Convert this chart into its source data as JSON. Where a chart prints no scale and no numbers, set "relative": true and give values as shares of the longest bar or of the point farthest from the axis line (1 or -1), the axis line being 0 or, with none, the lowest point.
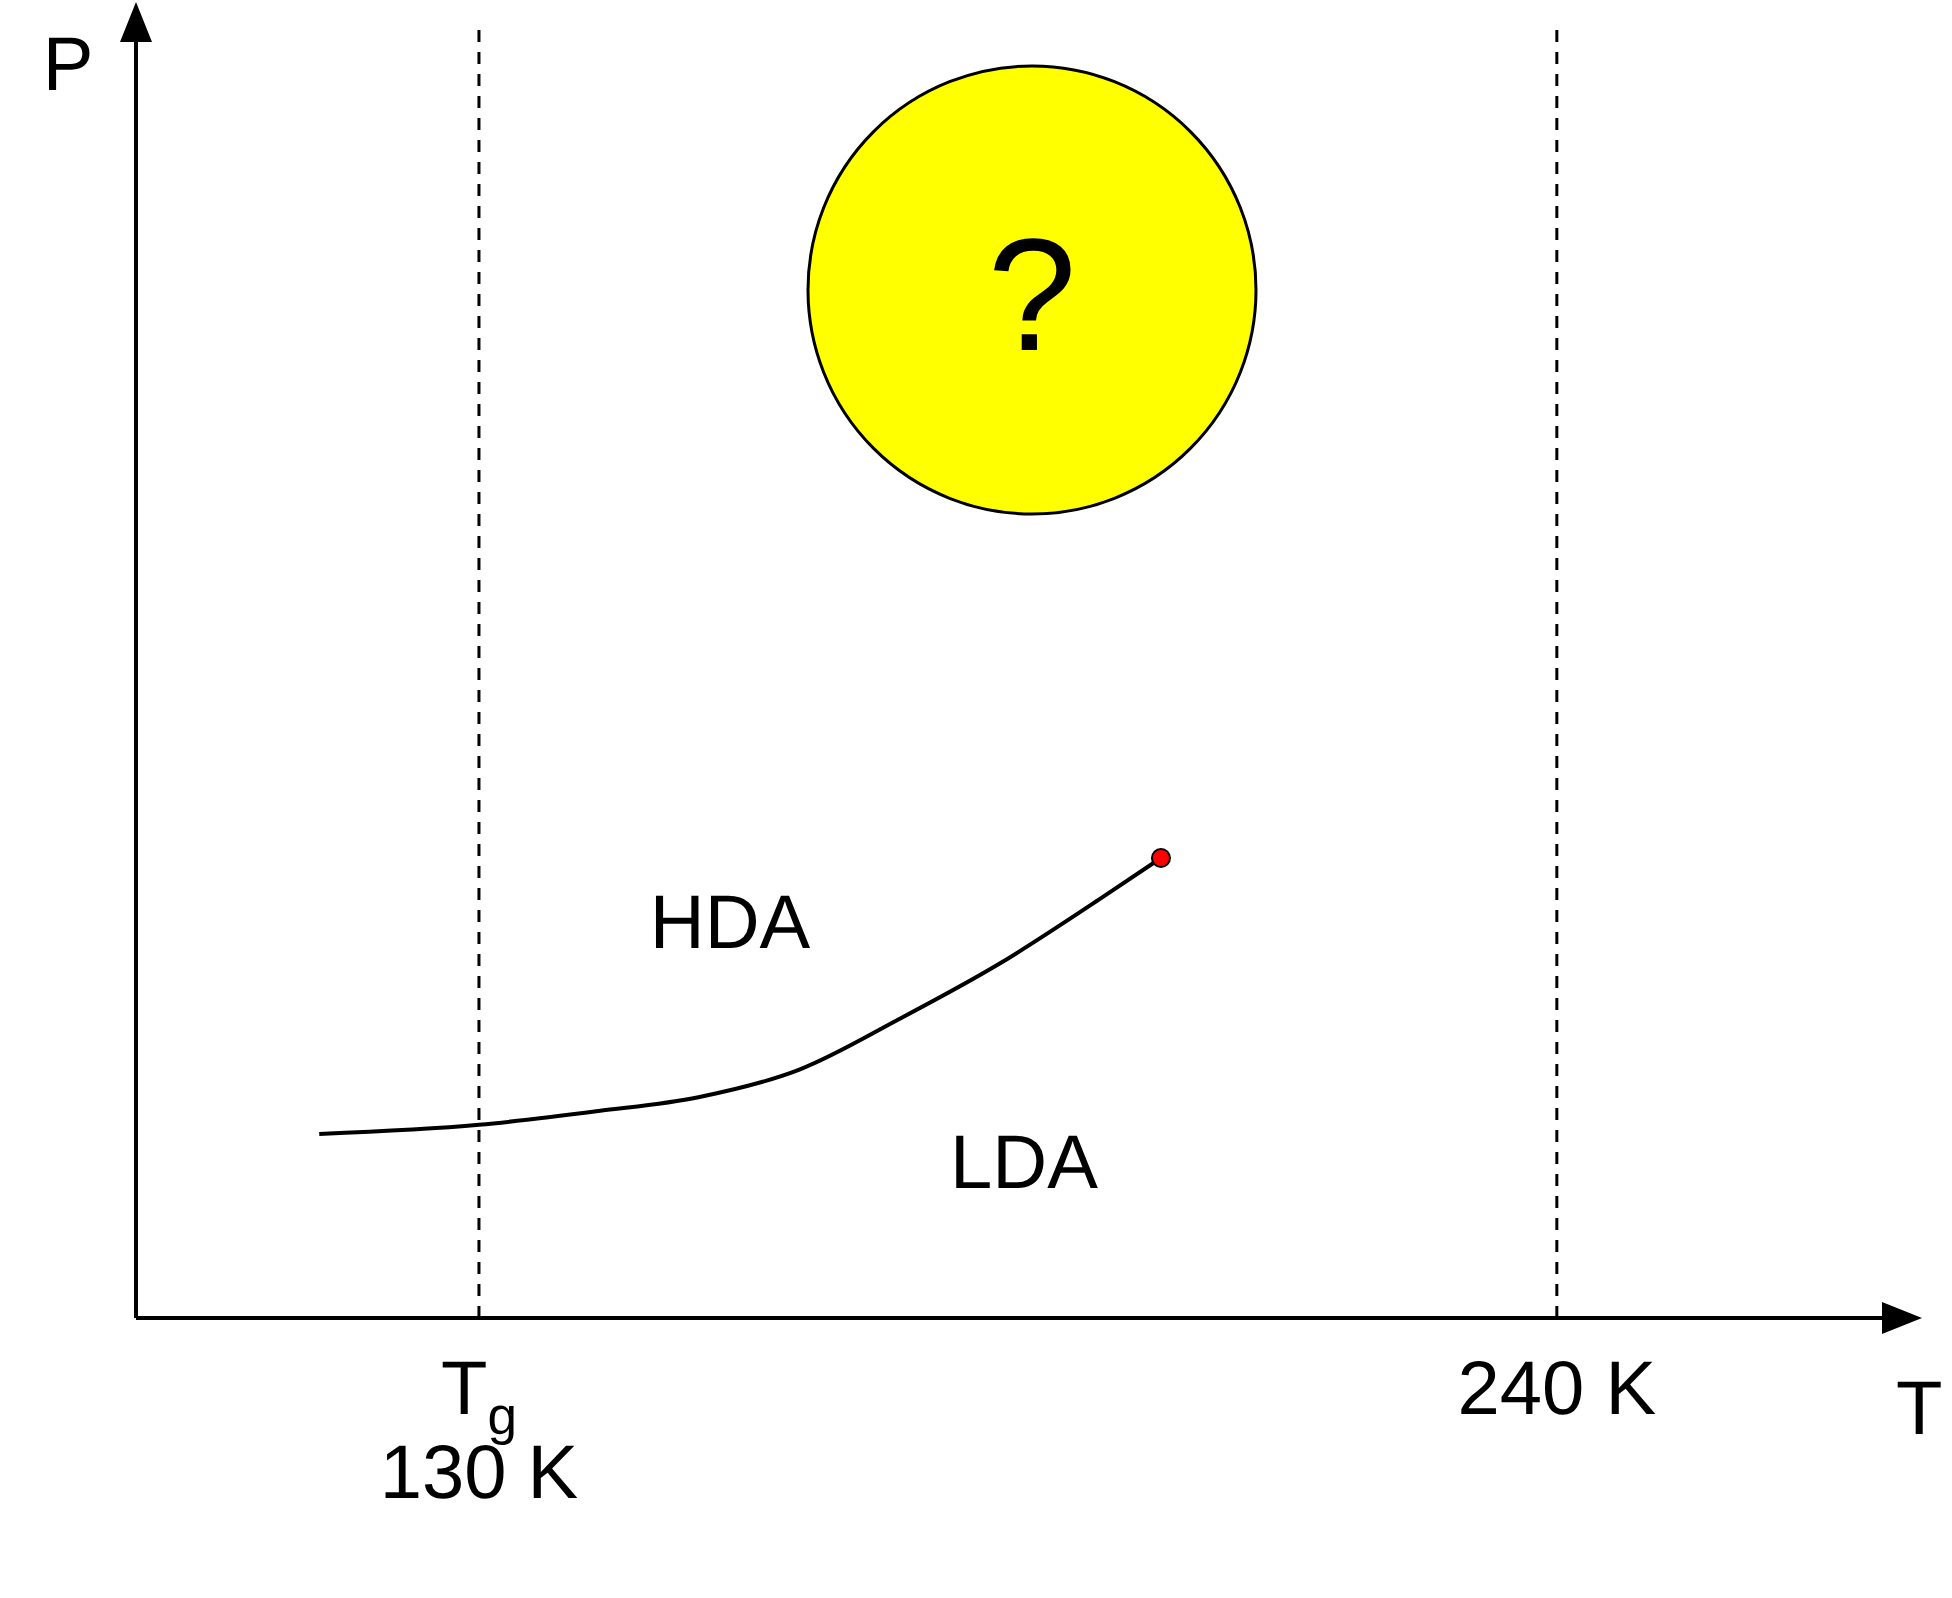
{
  "chart_data": {
    "type": "line",
    "xlabel": "T",
    "relative": true,
    "xlim": [
      95,
      274
    ],
    "xticks": [
      {
        "value": 130,
        "label": "T$_{g}$\n130 K"
      },
      {
        "value": 240,
        "label": "240 K"
      }
    ],
    "series": [
      {
        "color": "#000000",
        "marker": "none",
        "x": [
          113.7,
          130,
          142.2,
          152.4,
          162.7,
          172.9,
          183.1,
          193.3,
          199.6
        ],
        "values": [
          0.4,
          0.42,
          0.45,
          0.48,
          0.54,
          0.65,
          0.77,
          0.91,
          1.0
        ]
      },
      {
        "type": "scatter",
        "color": "#ff0000",
        "marker": "circle",
        "x": [
          199.6
        ],
        "values": [
          1.0
        ]
      }
    ],
    "ref_lines": [
      {
        "axis": "x",
        "value": 130,
        "line_style": "dashed",
        "color": "#000000"
      },
      {
        "axis": "x",
        "value": 240,
        "line_style": "dashed",
        "color": "#000000"
      }
    ],
    "annotations": [
      "HDA",
      "LDA",
      "?",
      "P"
    ]
  }
}
